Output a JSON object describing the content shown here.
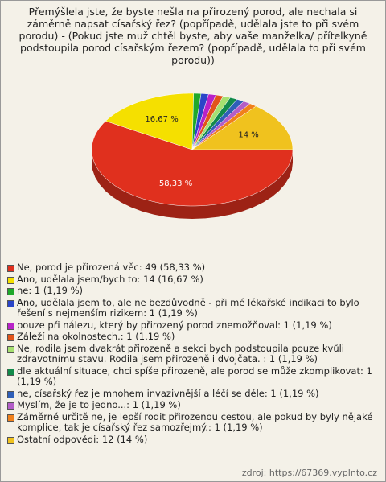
{
  "chart_data": {
    "type": "pie",
    "title": "Přemýšlela jste, že byste nešla na přirozený porod, ale nechala si záměrně napsat císařský řez? (popřípadě, udělala jste to při svém porodu) - (Pokud jste muž chtěl byste, aby vaše manželka/ přítelkyně podstoupila porod císařským řezem? (popřípadě, udělala to při svém porodu))",
    "categories": [
      "Ne, porod je přirozená věc: 49 (58,33 %)",
      "Ano, udělala jsem/bych to: 14 (16,67 %)",
      "ne: 1 (1,19 %)",
      "Ano, udělala jsem to, ale ne bezdůvodně - při mé lékařské indikaci to bylo řešení s nejmenším rizikem: 1 (1,19 %)",
      "pouze při nálezu, který by přirozený porod znemožňoval: 1 (1,19 %)",
      "Záleží na okolnostech.: 1 (1,19 %)",
      "Ne, rodila jsem dvakrát přirozeně a sekci bych podstoupila pouze kvůli zdravotnímu stavu. Rodila jsem přirozeně i dvojčata. : 1 (1,19 %)",
      "dle aktuální situace, chci spíše přirozeně, ale porod se může zkomplikovat: 1 (1,19 %)",
      "ne, císařský řez je mnohem invazivnější a léčí se déle: 1 (1,19 %)",
      "Myslím, že je to jedno...: 1 (1,19 %)",
      "Záměrně určitě ne, je lepší rodit přirozenou cestou, ale pokud by byly nějaké komplice, tak je císařský řez samozřejmý.: 1 (1,19 %)",
      "Ostatní odpovědi: 12 (14 %)"
    ],
    "values": [
      58.33,
      16.67,
      1.19,
      1.19,
      1.19,
      1.19,
      1.19,
      1.19,
      1.19,
      1.19,
      1.19,
      14
    ],
    "value_labels": [
      "58,33 %",
      "16,67 %",
      null,
      null,
      null,
      null,
      null,
      null,
      null,
      null,
      null,
      "14 %"
    ],
    "colors": [
      "#e0301e",
      "#f5e000",
      "#1fa82a",
      "#2a45c8",
      "#b822c8",
      "#e2541a",
      "#a6e070",
      "#128a4a",
      "#2f5fb8",
      "#b45ec8",
      "#f0801c",
      "#f0c21e"
    ],
    "source": "zdroj: https://67369.vyplnto.cz"
  }
}
